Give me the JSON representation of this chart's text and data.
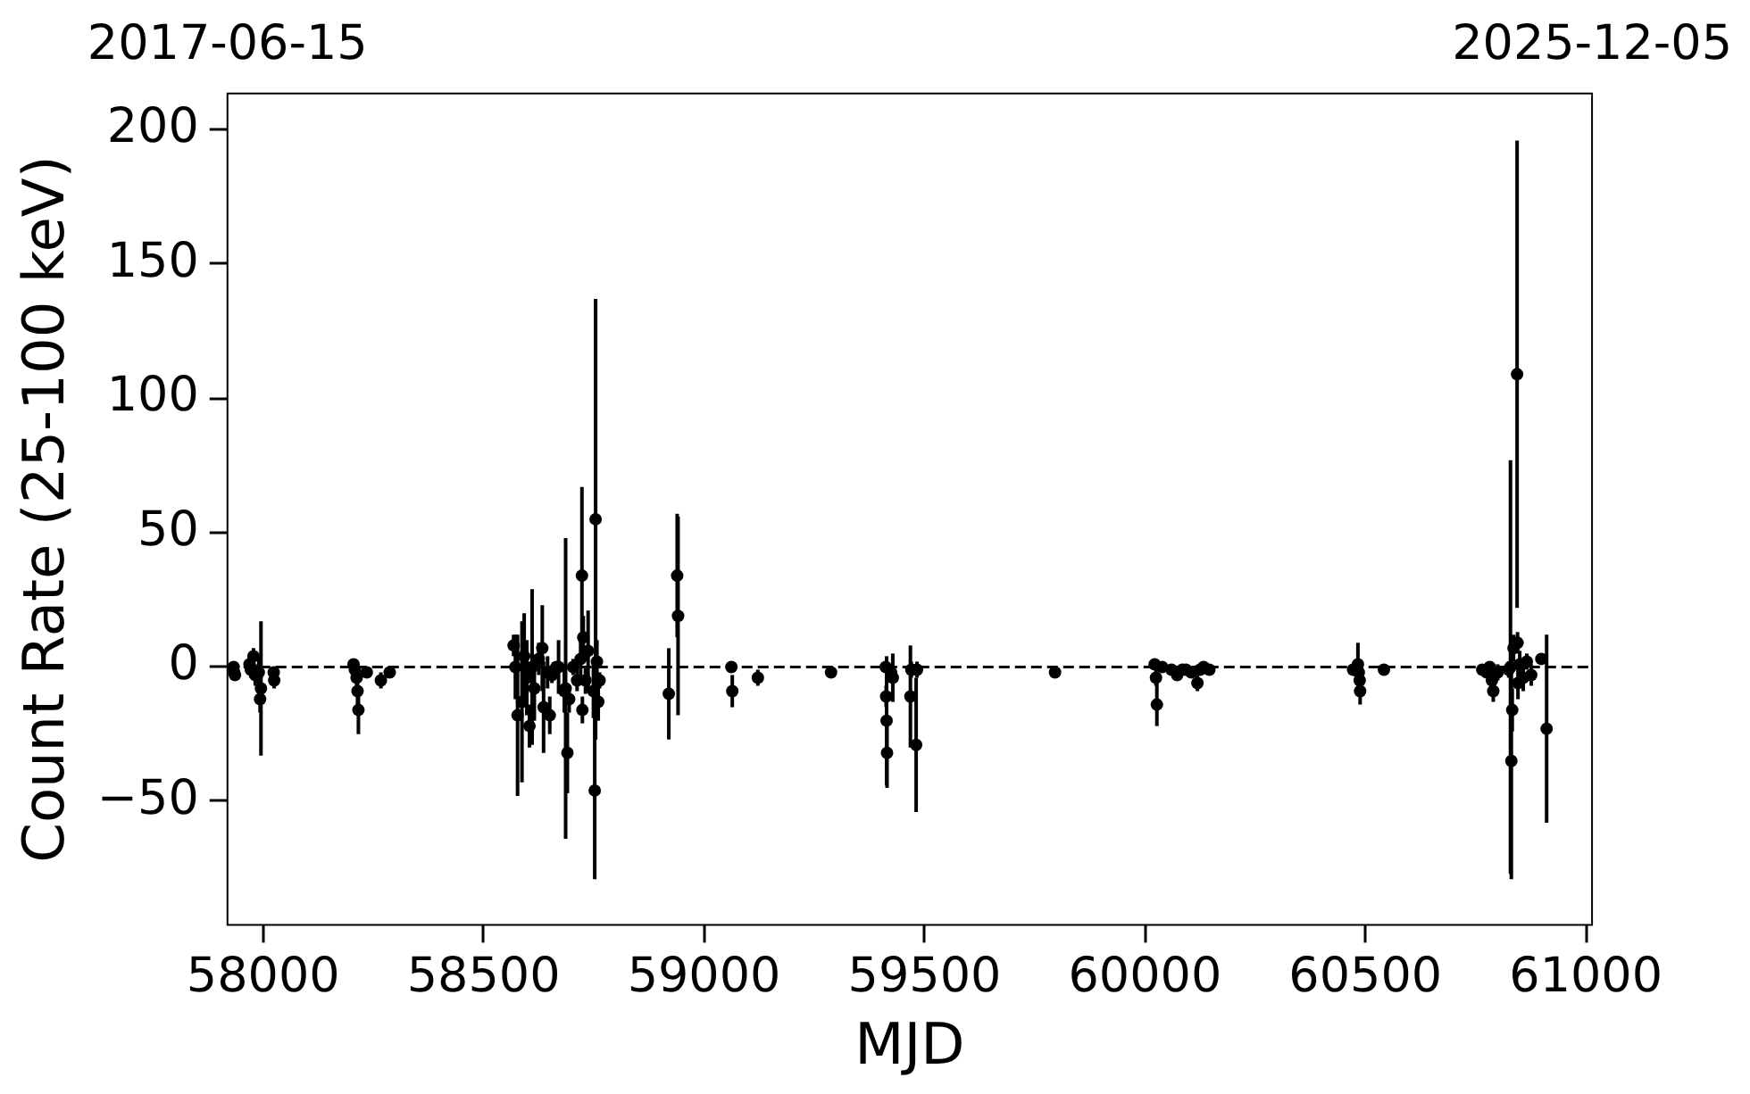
{
  "chart_data": {
    "type": "scatter",
    "xlabel": "MJD",
    "ylabel": "Count Rate (25-100 keV)",
    "xlim": [
      57919,
      61014
    ],
    "xticks": [
      58000,
      58500,
      59000,
      59500,
      60000,
      60500,
      61000
    ],
    "x2lim": [
      "2017-06-15",
      "2025-12-05"
    ],
    "x2ticks": [
      "2017-06-15",
      "2025-12-05"
    ],
    "ylim": [
      -96,
      213.5
    ],
    "yticks": [
      {
        "value": -50,
        "label": "−50"
      },
      0,
      50,
      100,
      150,
      200
    ],
    "grid": false,
    "marker": "circle",
    "color": "#000000",
    "x": [
      57933,
      57934,
      57936,
      57969,
      57972,
      57978,
      57982,
      57995,
      57993,
      57990,
      58024,
      58025,
      58205,
      58208,
      58212,
      58214,
      58216,
      58235,
      58267,
      58287,
      58568,
      58572,
      58577,
      58587,
      58592,
      58598,
      58604,
      58610,
      58615,
      58625,
      58633,
      58636,
      58645,
      58650,
      58655,
      58665,
      58670,
      58683,
      58686,
      58690,
      58694,
      58703,
      58712,
      58720,
      58723,
      58724,
      58726,
      58731,
      58737,
      58749,
      58752,
      58754,
      58757,
      58760,
      58763,
      58920,
      58939,
      58941,
      59062,
      59064,
      59122,
      59288,
      59412,
      59413,
      59414,
      59415,
      59428,
      59424,
      59468,
      59470,
      59481,
      59483,
      59796,
      60022,
      60025,
      60027,
      60039,
      60060,
      60073,
      60085,
      60093,
      60105,
      60119,
      60125,
      60133,
      60146,
      60472,
      60483,
      60485,
      60487,
      60488,
      60542,
      60765,
      60775,
      60782,
      60787,
      60790,
      60800,
      60825,
      60829,
      60831,
      60833,
      60836,
      60844,
      60845,
      60846,
      60850,
      60858,
      60866,
      60876,
      60899,
      60911
    ],
    "values": [
      0,
      -2,
      -3,
      1,
      -1,
      4,
      -3,
      -8,
      -12,
      -2,
      -2,
      -5,
      1,
      -1,
      -4,
      -9,
      -16,
      -2,
      -5,
      -2,
      8,
      0,
      -18,
      -13,
      4,
      -4,
      -22,
      0,
      -8,
      3,
      7,
      -15,
      -2,
      -18,
      -3,
      0,
      0,
      -9,
      -8,
      -32,
      -12,
      0,
      -5,
      3,
      34,
      -16,
      11,
      -5,
      6,
      -9,
      -46,
      55,
      2,
      -13,
      -5,
      -10,
      34,
      19,
      0,
      -9,
      -4,
      -2,
      0,
      -11,
      -20,
      -32,
      -4,
      -2,
      -11,
      -1,
      -29,
      -1,
      -2,
      1,
      -4,
      -14,
      0,
      -1,
      -3,
      -1,
      -1,
      -2,
      -6,
      -1,
      0,
      -1,
      -1,
      1,
      -2,
      -5,
      -9,
      -1,
      -1,
      -2,
      0,
      -5,
      -9,
      -2,
      -1,
      0,
      -35,
      -16,
      7,
      109,
      9,
      -6,
      1,
      -4,
      2,
      -3,
      3,
      -23
    ],
    "errors": [
      2,
      2,
      1,
      3,
      3,
      3,
      4,
      25,
      5,
      6,
      2,
      3,
      2,
      3,
      3,
      6,
      9,
      2,
      3,
      2,
      4,
      12,
      30,
      30,
      16,
      14,
      8,
      29,
      12,
      6,
      16,
      17,
      6,
      7,
      3,
      2,
      10,
      8,
      56,
      15,
      5,
      3,
      4,
      8,
      33,
      5,
      8,
      5,
      15,
      10,
      33,
      82,
      8,
      7,
      3,
      17,
      23,
      37,
      2,
      6,
      3,
      2,
      2,
      4,
      24,
      13,
      9,
      3,
      19,
      3,
      25,
      3,
      2,
      2,
      3,
      8,
      2,
      2,
      2,
      2,
      2,
      2,
      3,
      2,
      2,
      2,
      2,
      8,
      3,
      4,
      5,
      2,
      2,
      2,
      2,
      3,
      4,
      3,
      3,
      77,
      44,
      8,
      5,
      87,
      4,
      6,
      5,
      5,
      3,
      4,
      2,
      35
    ],
    "ref_lines": [
      {
        "axis": "y",
        "value": 0,
        "color": "#000000",
        "line_style": "dashed"
      }
    ]
  }
}
